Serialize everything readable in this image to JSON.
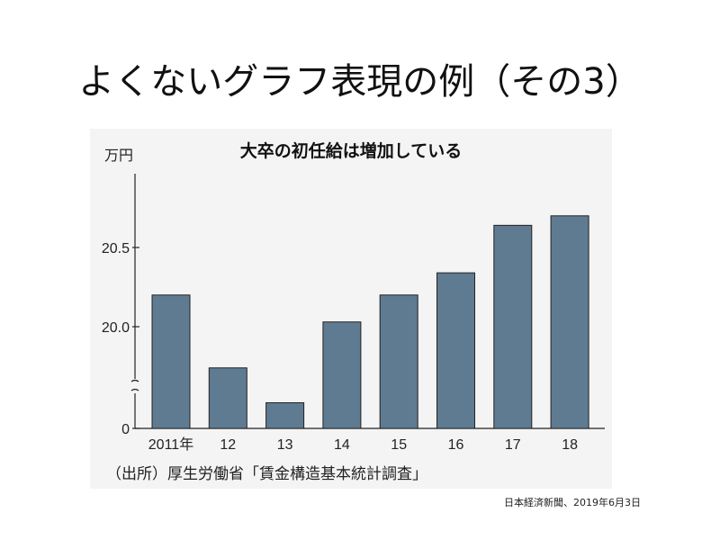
{
  "slide_title": "よくないグラフ表現の例（その3）",
  "source_note": "（出所）厚生労働省「賃金構造基本統計調査」",
  "citation": "日本経済新聞、2019年6月3日",
  "chart_data": {
    "type": "bar",
    "title": "大卒の初任給は増加している",
    "ylabel": "万円",
    "categories": [
      "2011年",
      "12",
      "13",
      "14",
      "15",
      "16",
      "17",
      "18"
    ],
    "values": [
      20.2,
      19.74,
      19.52,
      20.03,
      20.2,
      20.34,
      20.64,
      20.7
    ],
    "y_ticks": [
      {
        "value": 0,
        "label": "0"
      },
      {
        "value": 20.0,
        "label": "20.0"
      },
      {
        "value": 20.5,
        "label": "20.5"
      }
    ],
    "axis_break": true,
    "visible_range": [
      19.2,
      20.95
    ],
    "bar_color": "#5f7b92",
    "grid": false
  }
}
